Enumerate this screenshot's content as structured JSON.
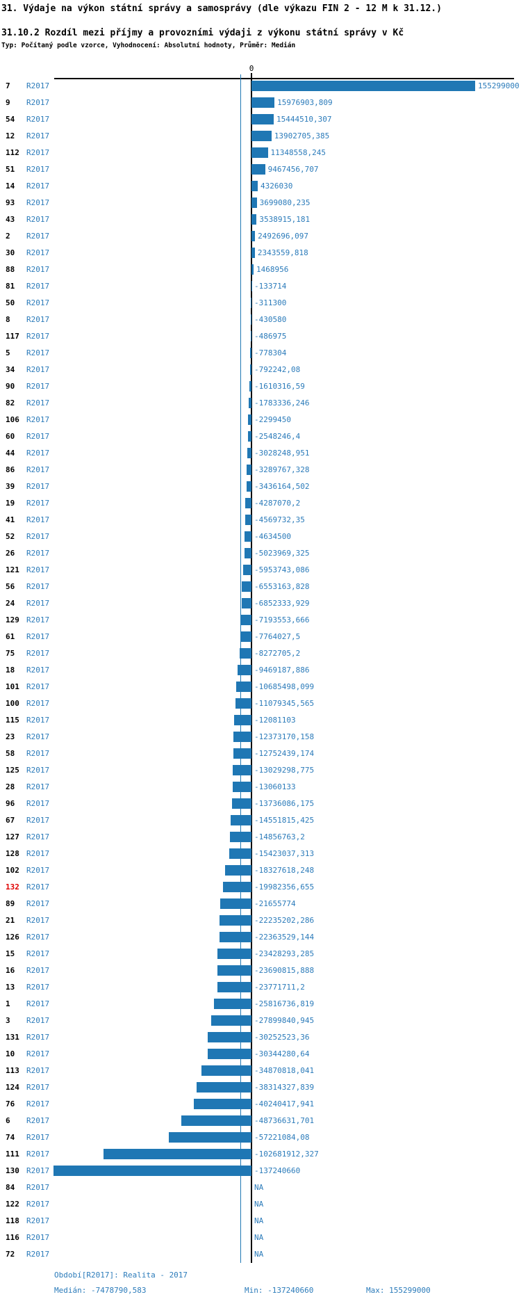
{
  "page": {
    "title": "31. Výdaje na výkon státní správy a samosprávy (dle výkazu FIN 2 - 12 M k 31.12.)",
    "subtitle": "31.10.2 Rozdíl mezi příjmy a provozními výdaji z výkonu státní správy v Kč",
    "meta": "Typ: Počítaný podle vzorce, Vyhodnocení: Absolutní hodnoty, Průměr: Medián"
  },
  "chart_data": {
    "type": "bar",
    "orientation": "horizontal",
    "zero_tick_label": "0",
    "series_label": "R2017",
    "highlight_row_id": "132",
    "median_value": -7478790.583,
    "value_range": [
      -137240660,
      155299000
    ],
    "colors": {
      "bar": "#1f77b4",
      "median_line": "#1f77b4",
      "text_blue": "#2b7bba",
      "highlight_red": "#e00000"
    },
    "rows": [
      {
        "id": "7",
        "value": 155299000,
        "label": "155299000"
      },
      {
        "id": "9",
        "value": 15976903.809,
        "label": "15976903,809"
      },
      {
        "id": "54",
        "value": 15444510.307,
        "label": "15444510,307"
      },
      {
        "id": "12",
        "value": 13902705.385,
        "label": "13902705,385"
      },
      {
        "id": "112",
        "value": 11348558.245,
        "label": "11348558,245"
      },
      {
        "id": "51",
        "value": 9467456.707,
        "label": "9467456,707"
      },
      {
        "id": "14",
        "value": 4326030,
        "label": "4326030"
      },
      {
        "id": "93",
        "value": 3699080.235,
        "label": "3699080,235"
      },
      {
        "id": "43",
        "value": 3538915.181,
        "label": "3538915,181"
      },
      {
        "id": "2",
        "value": 2492696.097,
        "label": "2492696,097"
      },
      {
        "id": "30",
        "value": 2343559.818,
        "label": "2343559,818"
      },
      {
        "id": "88",
        "value": 1468956,
        "label": "1468956"
      },
      {
        "id": "81",
        "value": -133714,
        "label": "-133714"
      },
      {
        "id": "50",
        "value": -311300,
        "label": "-311300"
      },
      {
        "id": "8",
        "value": -430580,
        "label": "-430580"
      },
      {
        "id": "117",
        "value": -486975,
        "label": "-486975"
      },
      {
        "id": "5",
        "value": -778304,
        "label": "-778304"
      },
      {
        "id": "34",
        "value": -792242.08,
        "label": "-792242,08"
      },
      {
        "id": "90",
        "value": -1610316.59,
        "label": "-1610316,59"
      },
      {
        "id": "82",
        "value": -1783336.246,
        "label": "-1783336,246"
      },
      {
        "id": "106",
        "value": -2299450,
        "label": "-2299450"
      },
      {
        "id": "60",
        "value": -2548246.4,
        "label": "-2548246,4"
      },
      {
        "id": "44",
        "value": -3028248.951,
        "label": "-3028248,951"
      },
      {
        "id": "86",
        "value": -3289767.328,
        "label": "-3289767,328"
      },
      {
        "id": "39",
        "value": -3436164.502,
        "label": "-3436164,502"
      },
      {
        "id": "19",
        "value": -4287070.2,
        "label": "-4287070,2"
      },
      {
        "id": "41",
        "value": -4569732.35,
        "label": "-4569732,35"
      },
      {
        "id": "52",
        "value": -4634500,
        "label": "-4634500"
      },
      {
        "id": "26",
        "value": -5023969.325,
        "label": "-5023969,325"
      },
      {
        "id": "121",
        "value": -5953743.086,
        "label": "-5953743,086"
      },
      {
        "id": "56",
        "value": -6553163.828,
        "label": "-6553163,828"
      },
      {
        "id": "24",
        "value": -6852333.929,
        "label": "-6852333,929"
      },
      {
        "id": "129",
        "value": -7193553.666,
        "label": "-7193553,666"
      },
      {
        "id": "61",
        "value": -7764027.5,
        "label": "-7764027,5"
      },
      {
        "id": "75",
        "value": -8272705.2,
        "label": "-8272705,2"
      },
      {
        "id": "18",
        "value": -9469187.886,
        "label": "-9469187,886"
      },
      {
        "id": "101",
        "value": -10685498.099,
        "label": "-10685498,099"
      },
      {
        "id": "100",
        "value": -11079345.565,
        "label": "-11079345,565"
      },
      {
        "id": "115",
        "value": -12081103,
        "label": "-12081103"
      },
      {
        "id": "23",
        "value": -12373170.158,
        "label": "-12373170,158"
      },
      {
        "id": "58",
        "value": -12752439.174,
        "label": "-12752439,174"
      },
      {
        "id": "125",
        "value": -13029298.775,
        "label": "-13029298,775"
      },
      {
        "id": "28",
        "value": -13060133,
        "label": "-13060133"
      },
      {
        "id": "96",
        "value": -13736086.175,
        "label": "-13736086,175"
      },
      {
        "id": "67",
        "value": -14551815.425,
        "label": "-14551815,425"
      },
      {
        "id": "127",
        "value": -14856763.2,
        "label": "-14856763,2"
      },
      {
        "id": "128",
        "value": -15423037.313,
        "label": "-15423037,313"
      },
      {
        "id": "102",
        "value": -18327618.248,
        "label": "-18327618,248"
      },
      {
        "id": "132",
        "value": -19982356.655,
        "label": "-19982356,655"
      },
      {
        "id": "89",
        "value": -21655774,
        "label": "-21655774"
      },
      {
        "id": "21",
        "value": -22235202.286,
        "label": "-22235202,286"
      },
      {
        "id": "126",
        "value": -22363529.144,
        "label": "-22363529,144"
      },
      {
        "id": "15",
        "value": -23428293.285,
        "label": "-23428293,285"
      },
      {
        "id": "16",
        "value": -23690815.888,
        "label": "-23690815,888"
      },
      {
        "id": "13",
        "value": -23771711.2,
        "label": "-23771711,2"
      },
      {
        "id": "1",
        "value": -25816736.819,
        "label": "-25816736,819"
      },
      {
        "id": "3",
        "value": -27899840.945,
        "label": "-27899840,945"
      },
      {
        "id": "131",
        "value": -30252523.36,
        "label": "-30252523,36"
      },
      {
        "id": "10",
        "value": -30344280.64,
        "label": "-30344280,64"
      },
      {
        "id": "113",
        "value": -34870818.041,
        "label": "-34870818,041"
      },
      {
        "id": "124",
        "value": -38314327.839,
        "label": "-38314327,839"
      },
      {
        "id": "76",
        "value": -40240417.941,
        "label": "-40240417,941"
      },
      {
        "id": "6",
        "value": -48736631.701,
        "label": "-48736631,701"
      },
      {
        "id": "74",
        "value": -57221084.08,
        "label": "-57221084,08"
      },
      {
        "id": "111",
        "value": -102681912.327,
        "label": "-102681912,327"
      },
      {
        "id": "130",
        "value": -137240660,
        "label": "-137240660"
      },
      {
        "id": "84",
        "value": null,
        "label": "NA"
      },
      {
        "id": "122",
        "value": null,
        "label": "NA"
      },
      {
        "id": "118",
        "value": null,
        "label": "NA"
      },
      {
        "id": "116",
        "value": null,
        "label": "NA"
      },
      {
        "id": "72",
        "value": null,
        "label": "NA"
      }
    ]
  },
  "footer": {
    "period": "Období[R2017]: Realita - 2017",
    "median": "Medián: -7478790,583",
    "min": "Min: -137240660",
    "max": "Max: 155299000"
  }
}
